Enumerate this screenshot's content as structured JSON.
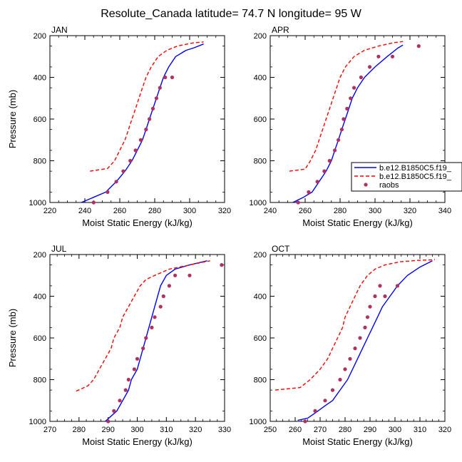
{
  "figure": {
    "title": "Resolute_Canada  latitude= 74.7 N longitude= 95 W"
  },
  "legend": {
    "location_panel": "APR",
    "entries": [
      {
        "label": "b.e12.B1850C5.f19_",
        "color": "#0000ff",
        "style": "solid"
      },
      {
        "label": "b.e12.B1850C5.f19_",
        "color": "#ff0000",
        "style": "dashed"
      },
      {
        "label": "raobs",
        "color": "#b03060",
        "style": "marker"
      }
    ]
  },
  "chart_data": [
    {
      "type": "line",
      "panel_label": "JAN",
      "xlabel": "Moist Static Energy (kJ/kg)",
      "ylabel": "Pressure (mb)",
      "xlim": [
        220,
        320
      ],
      "ylim": [
        1000,
        200
      ],
      "xticks": [
        220,
        240,
        260,
        280,
        300,
        320
      ],
      "yticks": [
        200,
        400,
        600,
        800,
        1000
      ],
      "y_reversed": true,
      "series": [
        {
          "label": "b.e12.B1850C5.f19_",
          "style": "solid",
          "color": "#0000ff",
          "x": [
            238,
            245,
            252,
            258,
            263,
            267,
            270,
            273,
            275,
            277,
            279,
            281,
            283,
            285,
            288,
            292,
            298,
            302,
            308
          ],
          "y": [
            1000,
            975,
            950,
            900,
            850,
            800,
            750,
            700,
            650,
            600,
            550,
            500,
            450,
            400,
            350,
            300,
            270,
            260,
            240
          ]
        },
        {
          "label": "b.e12.B1850C5.f19_",
          "style": "dashed",
          "color": "#ff0000",
          "x": [
            243,
            253,
            257,
            260,
            263,
            265,
            267,
            269,
            271,
            273,
            275,
            278,
            282,
            287,
            293,
            302,
            308
          ],
          "y": [
            850,
            837,
            800,
            750,
            700,
            650,
            600,
            550,
            500,
            450,
            400,
            350,
            300,
            270,
            250,
            235,
            230
          ]
        },
        {
          "label": "raobs",
          "style": "marker",
          "color": "#b03060",
          "x": [
            245,
            253,
            258,
            262,
            266,
            269,
            272,
            275,
            277,
            279,
            281,
            283,
            286,
            290
          ],
          "y": [
            1000,
            950,
            900,
            850,
            800,
            750,
            700,
            650,
            600,
            550,
            500,
            450,
            400,
            400
          ]
        }
      ]
    },
    {
      "type": "line",
      "panel_label": "APR",
      "xlabel": "Moist Static Energy (kJ/kg)",
      "ylabel": "",
      "xlim": [
        240,
        340
      ],
      "ylim": [
        1000,
        200
      ],
      "xticks": [
        240,
        260,
        280,
        300,
        320,
        340
      ],
      "yticks": [
        200,
        400,
        600,
        800,
        1000
      ],
      "y_reversed": true,
      "series": [
        {
          "label": "b.e12.B1850C5.f19_",
          "style": "solid",
          "color": "#0000ff",
          "x": [
            251,
            259,
            264,
            268,
            272,
            275,
            277,
            279,
            281,
            283,
            285,
            287,
            290,
            294,
            300,
            307,
            313,
            316
          ],
          "y": [
            1008,
            975,
            950,
            900,
            850,
            800,
            750,
            700,
            650,
            600,
            550,
            500,
            450,
            400,
            350,
            300,
            260,
            245
          ]
        },
        {
          "label": "b.e12.B1850C5.f19_",
          "style": "dashed",
          "color": "#ff0000",
          "x": [
            251,
            260,
            263,
            266,
            268,
            270,
            272,
            274,
            276,
            278,
            280,
            283,
            288,
            294,
            302,
            310,
            316
          ],
          "y": [
            850,
            840,
            800,
            750,
            700,
            650,
            600,
            550,
            500,
            450,
            400,
            350,
            300,
            270,
            250,
            235,
            228
          ]
        },
        {
          "label": "raobs",
          "style": "marker",
          "color": "#b03060",
          "x": [
            256,
            262,
            267,
            271,
            274,
            277,
            279,
            281,
            282,
            284,
            286,
            288,
            292,
            297,
            302,
            310,
            325
          ],
          "y": [
            1000,
            950,
            900,
            850,
            800,
            750,
            700,
            650,
            600,
            550,
            500,
            450,
            400,
            350,
            300,
            300,
            250
          ]
        }
      ]
    },
    {
      "type": "line",
      "panel_label": "JUL",
      "xlabel": "Moist Static Energy (kJ/kg)",
      "ylabel": "Pressure (mb)",
      "xlim": [
        270,
        330
      ],
      "ylim": [
        1000,
        200
      ],
      "xticks": [
        270,
        280,
        290,
        300,
        310,
        320,
        330
      ],
      "yticks": [
        200,
        400,
        600,
        800,
        1000
      ],
      "y_reversed": true,
      "series": [
        {
          "label": "b.e12.B1850C5.f19_",
          "style": "solid",
          "color": "#0000ff",
          "x": [
            289,
            291,
            293,
            295,
            297,
            298,
            300,
            301,
            302,
            303,
            304,
            305,
            306,
            307,
            308,
            310,
            313,
            318,
            324
          ],
          "y": [
            1000,
            975,
            950,
            900,
            850,
            800,
            750,
            700,
            650,
            600,
            550,
            500,
            450,
            400,
            350,
            300,
            270,
            250,
            230
          ]
        },
        {
          "label": "b.e12.B1850C5.f19_",
          "style": "dashed",
          "color": "#ff0000",
          "x": [
            279,
            283,
            285,
            287,
            289,
            291,
            292,
            294,
            295,
            297,
            299,
            301,
            303,
            306,
            311,
            318,
            325
          ],
          "y": [
            855,
            830,
            800,
            750,
            700,
            650,
            600,
            550,
            500,
            450,
            400,
            350,
            320,
            300,
            270,
            250,
            230
          ]
        },
        {
          "label": "raobs",
          "style": "marker",
          "color": "#b03060",
          "x": [
            290,
            292,
            294,
            296,
            297,
            299,
            300,
            302,
            303,
            305,
            306,
            308,
            309,
            311,
            313,
            318,
            329
          ],
          "y": [
            1000,
            950,
            900,
            850,
            800,
            750,
            700,
            650,
            600,
            550,
            500,
            450,
            400,
            350,
            300,
            300,
            250
          ]
        }
      ]
    },
    {
      "type": "line",
      "panel_label": "OCT",
      "xlabel": "Moist Static Energy (kJ/kg)",
      "ylabel": "",
      "xlim": [
        250,
        320
      ],
      "ylim": [
        1000,
        200
      ],
      "xticks": [
        250,
        260,
        270,
        280,
        290,
        300,
        310,
        320
      ],
      "yticks": [
        200,
        400,
        600,
        800,
        1000
      ],
      "y_reversed": true,
      "series": [
        {
          "label": "b.e12.B1850C5.f19_",
          "style": "solid",
          "color": "#0000ff",
          "x": [
            261,
            265,
            268,
            272,
            275,
            278,
            281,
            283,
            285,
            287,
            289,
            291,
            293,
            295,
            298,
            301,
            305,
            310,
            315
          ],
          "y": [
            995,
            985,
            960,
            925,
            900,
            850,
            800,
            750,
            700,
            650,
            600,
            550,
            500,
            450,
            400,
            350,
            300,
            260,
            230
          ]
        },
        {
          "label": "b.e12.B1850C5.f19_",
          "style": "dashed",
          "color": "#ff0000",
          "x": [
            252,
            262,
            266,
            270,
            273,
            275,
            277,
            279,
            280,
            282,
            284,
            286,
            289,
            292,
            296,
            302,
            309,
            316
          ],
          "y": [
            850,
            838,
            800,
            750,
            700,
            650,
            600,
            550,
            500,
            450,
            400,
            350,
            300,
            270,
            250,
            235,
            228,
            225
          ]
        },
        {
          "label": "raobs",
          "style": "marker",
          "color": "#b03060",
          "x": [
            264,
            268,
            272,
            275,
            278,
            280,
            282,
            284,
            286,
            288,
            289,
            290,
            292,
            294,
            296,
            301
          ],
          "y": [
            1000,
            950,
            900,
            850,
            800,
            750,
            700,
            650,
            600,
            550,
            500,
            450,
            400,
            350,
            400,
            350
          ]
        }
      ]
    }
  ]
}
